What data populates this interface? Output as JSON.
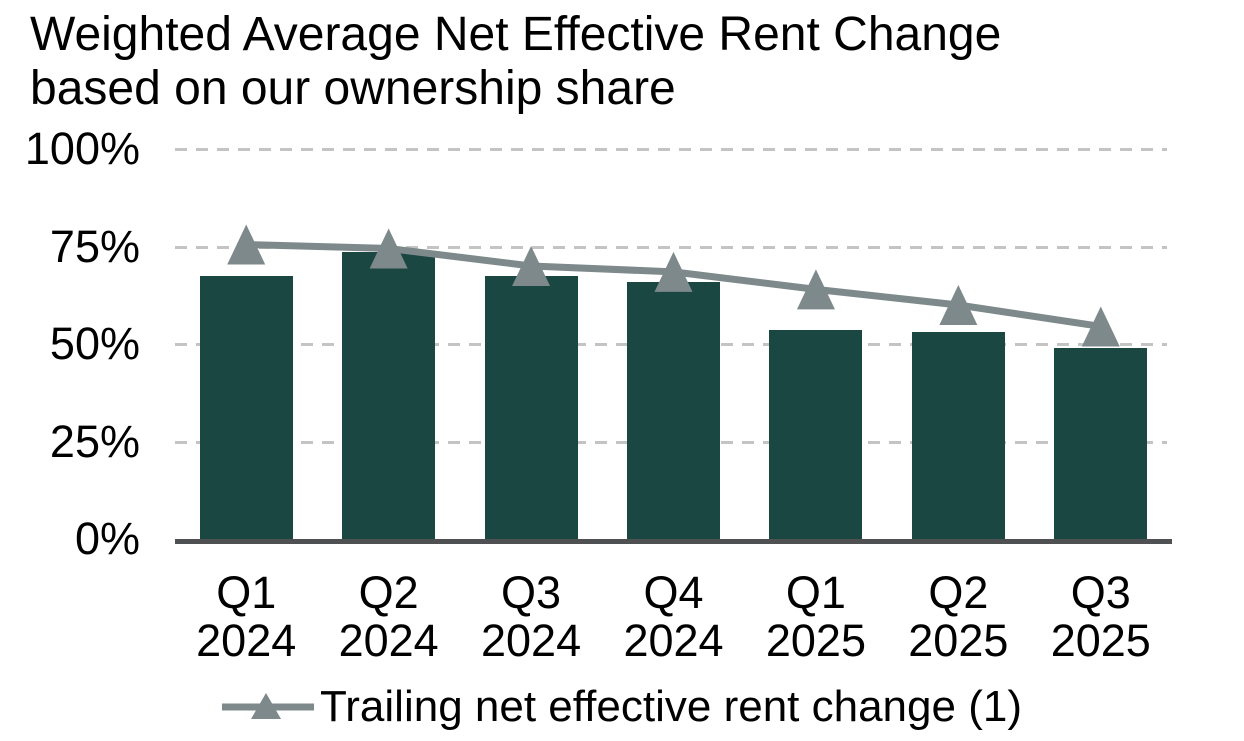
{
  "title_lines": [
    "Weighted Average Net Effective Rent Change",
    "based on our ownership share"
  ],
  "legend": {
    "label": "Trailing net effective rent change (1)"
  },
  "colors": {
    "bar": "#1B4743",
    "line": "#7E898B",
    "axis": "#4F5052",
    "gridline": "#C4C4C4",
    "text": "#000000",
    "background": "#FFFFFF"
  },
  "chart_data": {
    "type": "combo-bar-line",
    "categories": [
      "Q1 2024",
      "Q2 2024",
      "Q3 2024",
      "Q4 2024",
      "Q1 2025",
      "Q2 2025",
      "Q3 2025"
    ],
    "series": [
      {
        "name": "Weighted Average Net Effective Rent Change",
        "type": "bar",
        "values": [
          67.5,
          73.5,
          67.5,
          66,
          53.5,
          53,
          49
        ]
      },
      {
        "name": "Trailing net effective rent change (1)",
        "type": "line",
        "marker": "triangle",
        "values": [
          75.5,
          74.5,
          70,
          68.5,
          64,
          60,
          54.5
        ]
      }
    ],
    "title": "Weighted Average Net Effective Rent Change based on our ownership share",
    "xlabel": "",
    "ylabel": "",
    "ylim": [
      0,
      100
    ],
    "yticks": [
      {
        "value": 100,
        "label": "100%"
      },
      {
        "value": 75,
        "label": "75%"
      },
      {
        "value": 50,
        "label": "50%"
      },
      {
        "value": 25,
        "label": "25%"
      },
      {
        "value": 0,
        "label": "0%"
      }
    ],
    "grid": "horizontal-dashed",
    "legend_position": "bottom"
  }
}
